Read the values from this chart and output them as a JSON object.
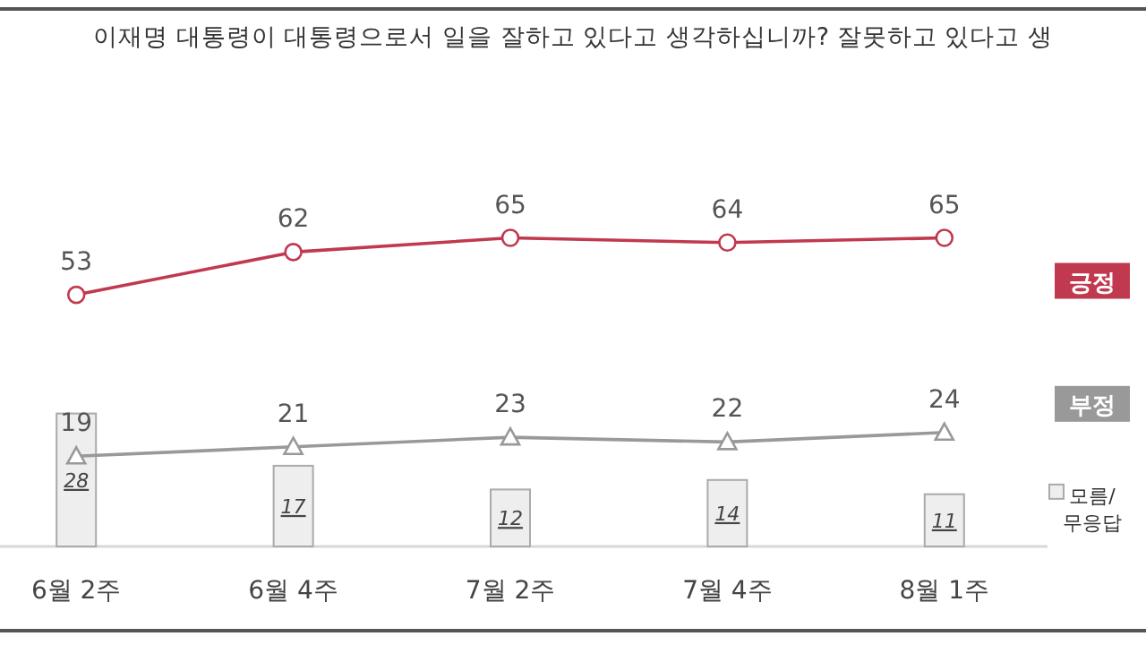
{
  "chart_data": {
    "type": "line",
    "title": "이재명 대통령이 대통령으로서 일을 잘하고 있다고 생각하십니까? 잘못하고 있다고 생",
    "categories": [
      "6월 2주",
      "6월 4주",
      "7월 2주",
      "7월 4주",
      "8월 1주"
    ],
    "tick_labels": "x",
    "data_labels": true,
    "legend": "right",
    "series": [
      {
        "name": "긍정",
        "color": "#c0394f",
        "marker": "circle",
        "values": [
          53,
          62,
          65,
          64,
          65
        ]
      },
      {
        "name": "부정",
        "color": "#999999",
        "marker": "triangle",
        "values": [
          19,
          21,
          23,
          22,
          24
        ]
      },
      {
        "name": "모름/무응답",
        "type": "bar",
        "color": "#eeeeee",
        "values": [
          28,
          17,
          12,
          14,
          11
        ]
      }
    ]
  }
}
